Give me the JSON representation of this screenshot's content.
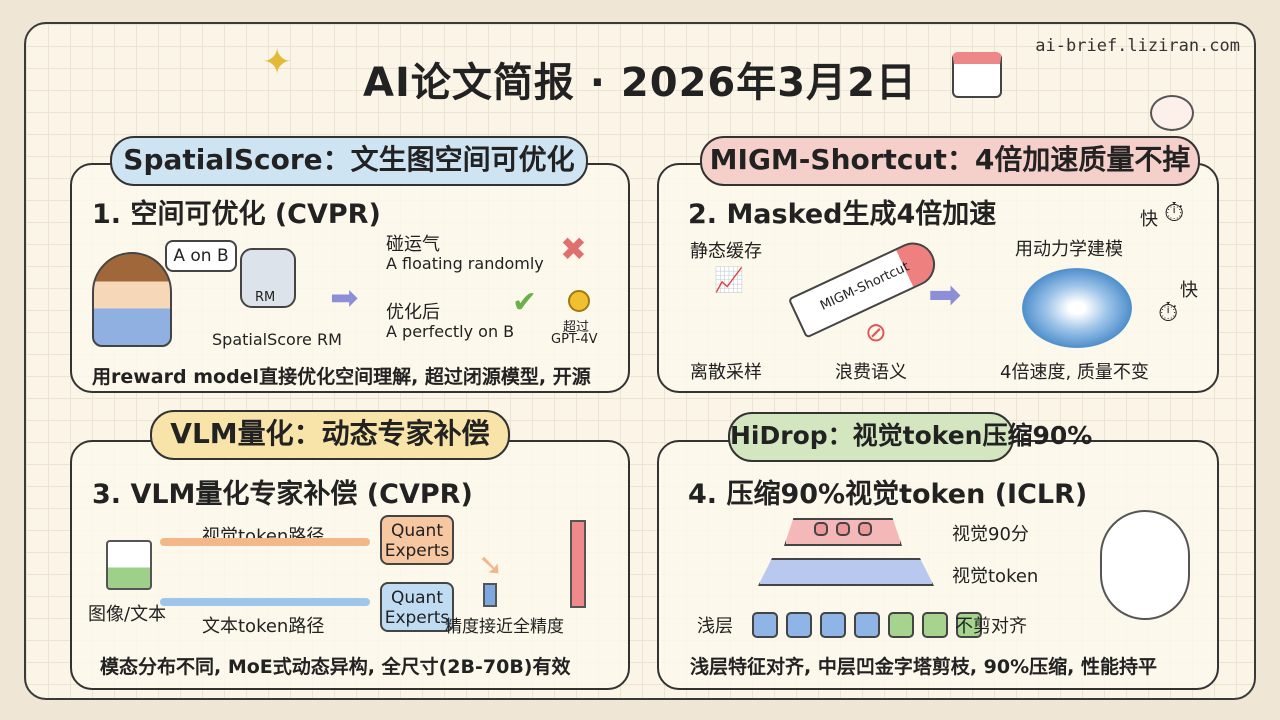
{
  "header": {
    "title": "AI论文简报 · 2026年3月2日",
    "site": "ai-brief.liziran.com",
    "icons": [
      "sparkle-icon",
      "calendar-icon",
      "bunny-icon"
    ]
  },
  "panels": [
    {
      "pill": "SpatialScore：文生图空间可优化",
      "pill_color": "#cfe4f2",
      "heading": "1. 空间可优化 (CVPR)",
      "bubble": "A on B",
      "robot_label": "RM",
      "robot_caption": "SpatialScore RM",
      "bad_title": "碰运气",
      "bad_text": "A floating randomly",
      "good_title": "优化后",
      "good_text": "A perfectly on B",
      "medal_line1": "超过",
      "medal_line2": "GPT-4V",
      "summary": "用reward model直接优化空间理解, 超过闭源模型, 开源"
    },
    {
      "pill": "MIGM-Shortcut：4倍加速质量不掉",
      "pill_color": "#f5cfc9",
      "heading": "2. Masked生成4倍加速",
      "static_cache": "静态缓存",
      "rocket_label": "MIGM-Shortcut",
      "discrete": "离散采样",
      "waste": "浪费语义",
      "dynamics": "用动力学建模",
      "fast1": "快",
      "fast2": "快",
      "result": "4倍速度, 质量不变"
    },
    {
      "pill": "VLM量化：动态专家补偿",
      "pill_color": "#f8e3a8",
      "heading": "3. VLM量化专家补偿 (CVPR)",
      "input": "图像/文本",
      "visual_path": "视觉token路径",
      "text_path": "文本token路径",
      "expert1": [
        "Quant",
        "Experts"
      ],
      "expert2": [
        "Quant",
        "Experts"
      ],
      "accuracy": "精度接近全精度",
      "summary": "模态分布不同, MoE式动态异构, 全尺寸(2B-70B)有效"
    },
    {
      "pill": "HiDrop：视觉token压缩90%",
      "pill_color": "#d4e6bf",
      "heading": "4. 压缩90%视觉token (ICLR)",
      "top_label": "视觉90分",
      "mid_label": "视觉token",
      "shallow": "浅层",
      "shallow_right": "不剪对齐",
      "summary": "浅层特征对齐, 中层凹金字塔剪枝, 90%压缩, 性能持平"
    }
  ]
}
